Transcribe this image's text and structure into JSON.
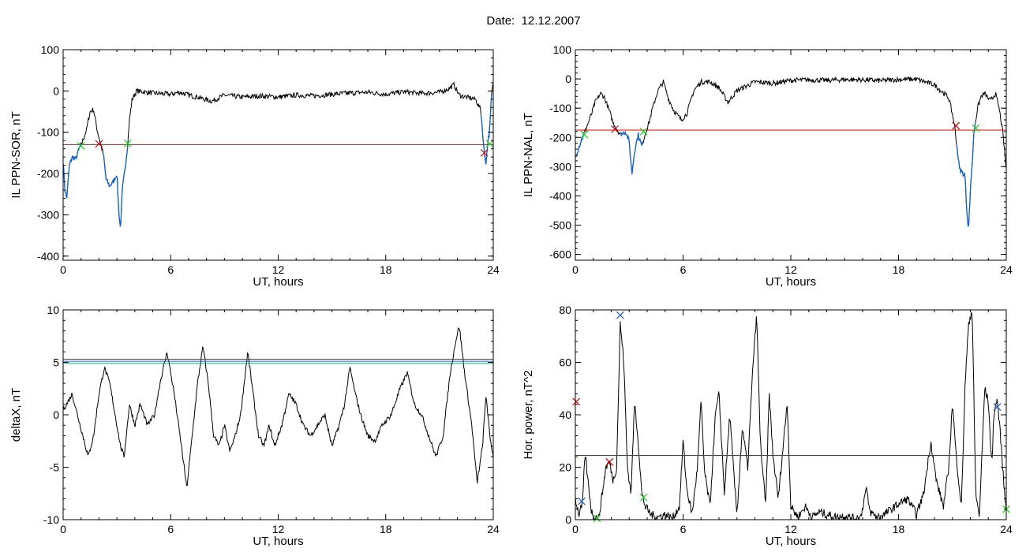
{
  "page": {
    "title": "Date:  12.12.2007"
  },
  "colors": {
    "threshold": "#dd0000",
    "disturbed": "#1060d0",
    "start_marker": "#cc0000",
    "end_marker": "#22cc22",
    "blue_marker": "#2060c0",
    "green_line": "#2aa060"
  },
  "chart_data": [
    {
      "type": "line",
      "xlabel": "UT, hours",
      "ylabel": "IL PPN-SOR, nT",
      "xlim": [
        0,
        24
      ],
      "ylim": [
        -410,
        100
      ],
      "xticks": [
        0,
        6,
        12,
        18,
        24
      ],
      "yticks": [
        100,
        0,
        -100,
        -200,
        -300,
        -400
      ],
      "threshold": -130,
      "series_points": [
        [
          0,
          -170
        ],
        [
          0.1,
          -240
        ],
        [
          0.2,
          -260
        ],
        [
          0.35,
          -180
        ],
        [
          0.5,
          -160
        ],
        [
          0.7,
          -165
        ],
        [
          0.9,
          -140
        ],
        [
          1.1,
          -120
        ],
        [
          1.3,
          -95
        ],
        [
          1.5,
          -50
        ],
        [
          1.7,
          -45
        ],
        [
          1.9,
          -95
        ],
        [
          2.1,
          -130
        ],
        [
          2.25,
          -155
        ],
        [
          2.4,
          -215
        ],
        [
          2.6,
          -230
        ],
        [
          2.8,
          -220
        ],
        [
          3.0,
          -200
        ],
        [
          3.1,
          -290
        ],
        [
          3.2,
          -335
        ],
        [
          3.3,
          -240
        ],
        [
          3.45,
          -190
        ],
        [
          3.6,
          -130
        ],
        [
          3.7,
          -70
        ],
        [
          3.85,
          -20
        ],
        [
          4.1,
          0
        ],
        [
          5,
          -5
        ],
        [
          6,
          -8
        ],
        [
          6.5,
          -3
        ],
        [
          7,
          -10
        ],
        [
          7.5,
          -15
        ],
        [
          8.3,
          -25
        ],
        [
          9,
          -10
        ],
        [
          10,
          -15
        ],
        [
          11,
          -12
        ],
        [
          12,
          -15
        ],
        [
          13,
          -10
        ],
        [
          14,
          -12
        ],
        [
          15,
          -8
        ],
        [
          16,
          -5
        ],
        [
          17,
          -3
        ],
        [
          18,
          -8
        ],
        [
          19,
          -2
        ],
        [
          20,
          -6
        ],
        [
          21,
          -3
        ],
        [
          21.5,
          5
        ],
        [
          21.8,
          15
        ],
        [
          22.1,
          -10
        ],
        [
          22.5,
          -15
        ],
        [
          23,
          -20
        ],
        [
          23.3,
          -45
        ],
        [
          23.5,
          -150
        ],
        [
          23.6,
          -175
        ],
        [
          23.7,
          -120
        ],
        [
          23.8,
          -95
        ],
        [
          23.9,
          -10
        ],
        [
          24,
          20
        ]
      ],
      "disturbed_ranges": [
        [
          0,
          1.0
        ],
        [
          2.2,
          3.6
        ],
        [
          23.3,
          23.9
        ]
      ],
      "markers": [
        {
          "x": 1.0,
          "y": -133,
          "kind": "end"
        },
        {
          "x": 2.0,
          "y": -128,
          "kind": "start"
        },
        {
          "x": 3.6,
          "y": -127,
          "kind": "end"
        },
        {
          "x": 23.5,
          "y": -150,
          "kind": "start"
        },
        {
          "x": 23.8,
          "y": -128,
          "kind": "end"
        }
      ]
    },
    {
      "type": "line",
      "xlabel": "UT, hours",
      "ylabel": "IL PPN-NAL, nT",
      "xlim": [
        0,
        24
      ],
      "ylim": [
        -620,
        100
      ],
      "xticks": [
        0,
        6,
        12,
        18,
        24
      ],
      "yticks": [
        100,
        0,
        -100,
        -200,
        -300,
        -400,
        -500,
        -600
      ],
      "threshold": -175,
      "series_points": [
        [
          0,
          -270
        ],
        [
          0.1,
          -250
        ],
        [
          0.3,
          -215
        ],
        [
          0.6,
          -170
        ],
        [
          0.9,
          -120
        ],
        [
          1.1,
          -80
        ],
        [
          1.4,
          -50
        ],
        [
          1.6,
          -60
        ],
        [
          1.9,
          -110
        ],
        [
          2.1,
          -150
        ],
        [
          2.3,
          -170
        ],
        [
          2.5,
          -190
        ],
        [
          2.8,
          -180
        ],
        [
          3.0,
          -215
        ],
        [
          3.15,
          -325
        ],
        [
          3.3,
          -245
        ],
        [
          3.5,
          -190
        ],
        [
          3.7,
          -230
        ],
        [
          3.9,
          -185
        ],
        [
          4.1,
          -150
        ],
        [
          4.3,
          -100
        ],
        [
          4.6,
          -40
        ],
        [
          4.9,
          -10
        ],
        [
          5.2,
          -70
        ],
        [
          5.5,
          -110
        ],
        [
          5.9,
          -140
        ],
        [
          6.2,
          -120
        ],
        [
          6.6,
          -40
        ],
        [
          7.0,
          -10
        ],
        [
          7.5,
          -10
        ],
        [
          8.0,
          -30
        ],
        [
          8.5,
          -80
        ],
        [
          9,
          -40
        ],
        [
          10,
          -10
        ],
        [
          11,
          -15
        ],
        [
          12,
          -5
        ],
        [
          13,
          -3
        ],
        [
          14,
          -5
        ],
        [
          15,
          -2
        ],
        [
          16,
          -3
        ],
        [
          17,
          -6
        ],
        [
          18,
          -2
        ],
        [
          19,
          -1
        ],
        [
          20,
          -20
        ],
        [
          20.8,
          -65
        ],
        [
          21.1,
          -150
        ],
        [
          21.4,
          -310
        ],
        [
          21.7,
          -330
        ],
        [
          21.8,
          -450
        ],
        [
          21.9,
          -515
        ],
        [
          22.0,
          -380
        ],
        [
          22.1,
          -290
        ],
        [
          22.2,
          -180
        ],
        [
          22.4,
          -100
        ],
        [
          22.6,
          -60
        ],
        [
          22.8,
          -50
        ],
        [
          23.1,
          -75
        ],
        [
          23.4,
          -50
        ],
        [
          23.6,
          -100
        ],
        [
          23.8,
          -180
        ],
        [
          24,
          -310
        ]
      ],
      "disturbed_ranges": [
        [
          0,
          0.5
        ],
        [
          2.5,
          3.8
        ],
        [
          21.2,
          22.3
        ]
      ],
      "markers": [
        {
          "x": 0.5,
          "y": -190,
          "kind": "end"
        },
        {
          "x": 2.2,
          "y": -172,
          "kind": "start"
        },
        {
          "x": 3.8,
          "y": -180,
          "kind": "end"
        },
        {
          "x": 21.2,
          "y": -160,
          "kind": "start"
        },
        {
          "x": 22.3,
          "y": -168,
          "kind": "end"
        }
      ]
    },
    {
      "type": "line",
      "xlabel": "UT, hours",
      "ylabel": "deltaX, nT",
      "xlim": [
        0,
        24
      ],
      "ylim": [
        -10,
        10
      ],
      "xticks": [
        0,
        6,
        12,
        18,
        24
      ],
      "yticks": [
        10,
        5,
        0,
        -5,
        -10
      ],
      "thresholds": [
        {
          "value": 5.3,
          "color": "threshold"
        },
        {
          "value": 5.1,
          "color": "blue_marker"
        },
        {
          "value": 4.9,
          "color": "green_line"
        }
      ],
      "series_points": [
        [
          0,
          0.5
        ],
        [
          0.2,
          1
        ],
        [
          0.5,
          2
        ],
        [
          0.8,
          0
        ],
        [
          1.1,
          -2
        ],
        [
          1.4,
          -4
        ],
        [
          1.7,
          -2
        ],
        [
          2.0,
          2
        ],
        [
          2.3,
          4.5
        ],
        [
          2.6,
          3
        ],
        [
          2.9,
          0
        ],
        [
          3.2,
          -3
        ],
        [
          3.4,
          -4
        ],
        [
          3.7,
          1
        ],
        [
          4.0,
          -1
        ],
        [
          4.3,
          1
        ],
        [
          4.7,
          -1
        ],
        [
          5.1,
          0
        ],
        [
          5.4,
          3
        ],
        [
          5.8,
          6
        ],
        [
          6.2,
          2
        ],
        [
          6.6,
          -3
        ],
        [
          6.9,
          -7
        ],
        [
          7.2,
          -2
        ],
        [
          7.5,
          3
        ],
        [
          7.8,
          6.5
        ],
        [
          8.1,
          3
        ],
        [
          8.4,
          -2
        ],
        [
          8.7,
          -3
        ],
        [
          9.0,
          -1
        ],
        [
          9.3,
          -3.5
        ],
        [
          9.6,
          -2
        ],
        [
          9.9,
          0
        ],
        [
          10.3,
          6
        ],
        [
          10.6,
          2
        ],
        [
          10.9,
          -2
        ],
        [
          11.2,
          -3
        ],
        [
          11.5,
          -1
        ],
        [
          11.8,
          -3
        ],
        [
          12.2,
          -1
        ],
        [
          12.6,
          2
        ],
        [
          13.0,
          1
        ],
        [
          13.4,
          -1
        ],
        [
          13.8,
          -2
        ],
        [
          14.2,
          -1
        ],
        [
          14.6,
          0
        ],
        [
          15.0,
          -3
        ],
        [
          15.4,
          -1
        ],
        [
          15.7,
          1
        ],
        [
          16.0,
          4.5
        ],
        [
          16.3,
          2
        ],
        [
          16.6,
          0
        ],
        [
          17.0,
          -2
        ],
        [
          17.4,
          -2.5
        ],
        [
          17.8,
          -1
        ],
        [
          18.3,
          0
        ],
        [
          18.8,
          2.5
        ],
        [
          19.2,
          4
        ],
        [
          19.6,
          1
        ],
        [
          20.0,
          0
        ],
        [
          20.4,
          -2
        ],
        [
          20.8,
          -4
        ],
        [
          21.2,
          -2
        ],
        [
          21.6,
          4
        ],
        [
          21.9,
          7
        ],
        [
          22.1,
          8.5
        ],
        [
          22.4,
          4
        ],
        [
          22.8,
          -1
        ],
        [
          23.1,
          -6.5
        ],
        [
          23.4,
          -3
        ],
        [
          23.6,
          2
        ],
        [
          23.8,
          -2
        ],
        [
          24,
          -4
        ]
      ],
      "markers": []
    },
    {
      "type": "line",
      "xlabel": "UT, hours",
      "ylabel": "Hor. power, nT^2",
      "xlim": [
        0,
        24
      ],
      "ylim": [
        0,
        80
      ],
      "xticks": [
        0,
        6,
        12,
        18,
        24
      ],
      "yticks": [
        80,
        60,
        40,
        20,
        0
      ],
      "threshold": 24.5,
      "series_points": [
        [
          0,
          8
        ],
        [
          0.2,
          2
        ],
        [
          0.4,
          6
        ],
        [
          0.5,
          20
        ],
        [
          0.55,
          25
        ],
        [
          0.7,
          15
        ],
        [
          0.9,
          3
        ],
        [
          1.1,
          1
        ],
        [
          1.3,
          0.5
        ],
        [
          1.5,
          10
        ],
        [
          1.7,
          20
        ],
        [
          1.9,
          22
        ],
        [
          2.1,
          15
        ],
        [
          2.3,
          20
        ],
        [
          2.5,
          75
        ],
        [
          2.7,
          60
        ],
        [
          2.9,
          20
        ],
        [
          3.1,
          10
        ],
        [
          3.3,
          45
        ],
        [
          3.5,
          30
        ],
        [
          3.7,
          10
        ],
        [
          3.9,
          5
        ],
        [
          4.2,
          2
        ],
        [
          4.6,
          1
        ],
        [
          5.0,
          2
        ],
        [
          5.4,
          0.5
        ],
        [
          5.8,
          5
        ],
        [
          6.0,
          30
        ],
        [
          6.2,
          12
        ],
        [
          6.5,
          2
        ],
        [
          6.8,
          20
        ],
        [
          7.0,
          45
        ],
        [
          7.2,
          18
        ],
        [
          7.5,
          5
        ],
        [
          7.8,
          40
        ],
        [
          8.0,
          48
        ],
        [
          8.3,
          10
        ],
        [
          8.6,
          40
        ],
        [
          8.8,
          20
        ],
        [
          9.0,
          2
        ],
        [
          9.3,
          35
        ],
        [
          9.6,
          20
        ],
        [
          9.9,
          60
        ],
        [
          10.1,
          78
        ],
        [
          10.3,
          30
        ],
        [
          10.6,
          5
        ],
        [
          10.8,
          48
        ],
        [
          11.0,
          25
        ],
        [
          11.3,
          8
        ],
        [
          11.6,
          30
        ],
        [
          11.8,
          45
        ],
        [
          12.0,
          5
        ],
        [
          12.4,
          1
        ],
        [
          12.8,
          5
        ],
        [
          13.2,
          1
        ],
        [
          13.6,
          3
        ],
        [
          14.0,
          2
        ],
        [
          14.5,
          1
        ],
        [
          15.0,
          1.5
        ],
        [
          15.5,
          0.5
        ],
        [
          15.9,
          1
        ],
        [
          16.2,
          12
        ],
        [
          16.4,
          3
        ],
        [
          16.8,
          1
        ],
        [
          17.2,
          2
        ],
        [
          17.6,
          4
        ],
        [
          18.0,
          6
        ],
        [
          18.5,
          8
        ],
        [
          19.0,
          2
        ],
        [
          19.4,
          10
        ],
        [
          19.8,
          30
        ],
        [
          20.1,
          15
        ],
        [
          20.5,
          5
        ],
        [
          20.8,
          20
        ],
        [
          21.0,
          45
        ],
        [
          21.2,
          25
        ],
        [
          21.5,
          5
        ],
        [
          21.7,
          50
        ],
        [
          21.9,
          75
        ],
        [
          22.1,
          80
        ],
        [
          22.3,
          10
        ],
        [
          22.5,
          1
        ],
        [
          22.8,
          50
        ],
        [
          23.0,
          45
        ],
        [
          23.2,
          20
        ],
        [
          23.3,
          40
        ],
        [
          23.5,
          46
        ],
        [
          23.7,
          30
        ],
        [
          23.9,
          10
        ],
        [
          24,
          5
        ]
      ],
      "markers": [
        {
          "x": 0.05,
          "y": 45,
          "kind": "start"
        },
        {
          "x": 0.35,
          "y": 7,
          "kind": "blue"
        },
        {
          "x": 1.2,
          "y": 0.5,
          "kind": "end"
        },
        {
          "x": 1.9,
          "y": 22,
          "kind": "start"
        },
        {
          "x": 2.5,
          "y": 78,
          "kind": "blue"
        },
        {
          "x": 3.8,
          "y": 8.5,
          "kind": "end"
        },
        {
          "x": 23.5,
          "y": 43,
          "kind": "blue"
        },
        {
          "x": 24,
          "y": 4,
          "kind": "end"
        }
      ]
    }
  ]
}
